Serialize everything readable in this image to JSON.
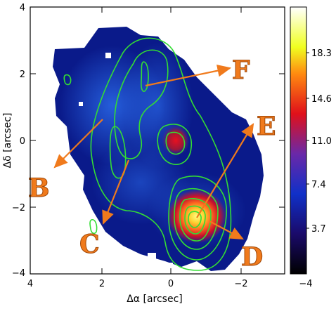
{
  "axes": {
    "xlabel": "Δα [arcsec]",
    "ylabel": "Δδ [arcsec]",
    "x_ticks": [
      "4",
      "2",
      "0",
      "−2",
      "−4"
    ],
    "y_ticks": [
      "4",
      "2",
      "0",
      "−2",
      "−4"
    ]
  },
  "colorbar": {
    "ticks": [
      "18.3",
      "14.6",
      "11.0",
      "7.4",
      "3.7"
    ]
  },
  "regions": [
    {
      "label": "F"
    },
    {
      "label": "E"
    },
    {
      "label": "B"
    },
    {
      "label": "C"
    },
    {
      "label": "D"
    }
  ],
  "colors": {
    "contour": "#33dd33",
    "arrow": "#f07a1c",
    "letter": "#f07a1c",
    "background_map": "#0a1a8a"
  }
}
